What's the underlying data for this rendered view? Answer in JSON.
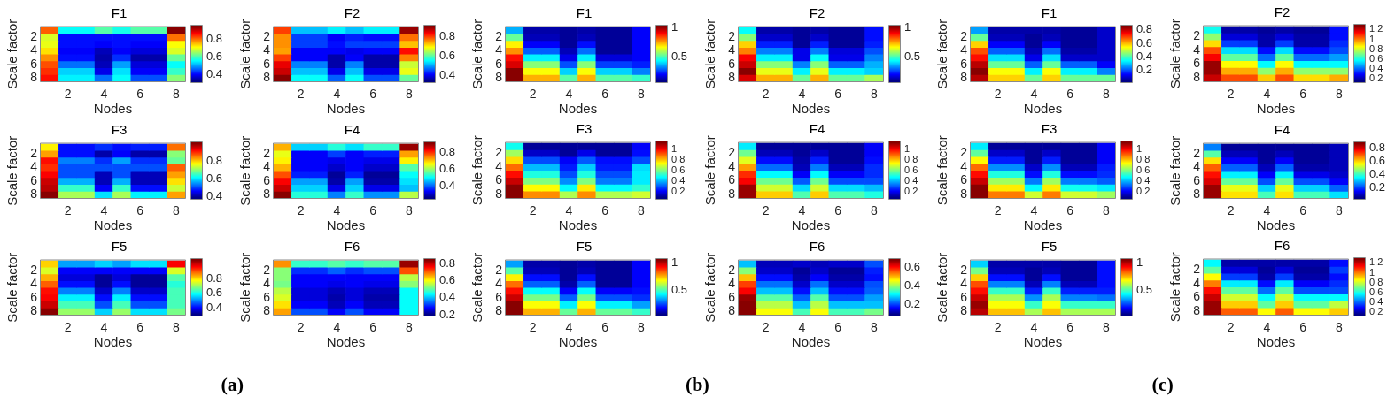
{
  "chart_data": [
    {
      "type": "heatmap",
      "title": "F1",
      "xlabel": "Nodes",
      "ylabel": "Scale factor",
      "categories": [
        null,
        "2",
        null,
        "4",
        null,
        "6",
        null,
        "8"
      ],
      "y_categories": [
        null,
        "2",
        null,
        "4",
        null,
        "6",
        null,
        "8"
      ],
      "clim": [
        0.32,
        0.94
      ],
      "cticks": [
        0.4,
        0.6,
        0.8
      ],
      "cells": [
        [
          0.8,
          0.55,
          0.55,
          0.6,
          0.56,
          0.6,
          0.6,
          0.94
        ],
        [
          0.68,
          0.41,
          0.41,
          0.41,
          0.4,
          0.41,
          0.41,
          0.79
        ],
        [
          0.69,
          0.4,
          0.4,
          0.39,
          0.4,
          0.39,
          0.39,
          0.7
        ],
        [
          0.72,
          0.39,
          0.39,
          0.36,
          0.39,
          0.37,
          0.37,
          0.68
        ],
        [
          0.77,
          0.41,
          0.41,
          0.34,
          0.42,
          0.34,
          0.34,
          0.61
        ],
        [
          0.81,
          0.47,
          0.47,
          0.36,
          0.49,
          0.37,
          0.37,
          0.55
        ],
        [
          0.83,
          0.52,
          0.52,
          0.38,
          0.53,
          0.39,
          0.39,
          0.58
        ],
        [
          0.85,
          0.54,
          0.54,
          0.46,
          0.55,
          0.44,
          0.44,
          0.63
        ]
      ]
    },
    {
      "type": "heatmap",
      "title": "F2",
      "xlabel": "Nodes",
      "ylabel": "Scale factor",
      "categories": [
        null,
        "2",
        null,
        "4",
        null,
        "6",
        null,
        "8"
      ],
      "y_categories": [
        null,
        "2",
        null,
        "4",
        null,
        "6",
        null,
        "8"
      ],
      "clim": [
        0.34,
        0.9
      ],
      "cticks": [
        0.4,
        0.6,
        0.8
      ],
      "cells": [
        [
          0.8,
          0.52,
          0.52,
          0.54,
          0.52,
          0.54,
          0.54,
          0.89
        ],
        [
          0.75,
          0.44,
          0.44,
          0.41,
          0.43,
          0.42,
          0.42,
          0.77
        ],
        [
          0.75,
          0.44,
          0.44,
          0.42,
          0.44,
          0.44,
          0.44,
          0.72
        ],
        [
          0.74,
          0.41,
          0.41,
          0.41,
          0.4,
          0.41,
          0.41,
          0.82
        ],
        [
          0.8,
          0.41,
          0.41,
          0.36,
          0.41,
          0.36,
          0.36,
          0.76
        ],
        [
          0.84,
          0.48,
          0.48,
          0.36,
          0.48,
          0.36,
          0.36,
          0.66
        ],
        [
          0.86,
          0.52,
          0.52,
          0.4,
          0.52,
          0.4,
          0.4,
          0.68
        ],
        [
          0.9,
          0.55,
          0.55,
          0.46,
          0.55,
          0.45,
          0.45,
          0.61
        ]
      ]
    },
    {
      "type": "heatmap",
      "title": "F3",
      "xlabel": "Nodes",
      "ylabel": "Scale factor",
      "categories": [
        null,
        "2",
        null,
        "4",
        null,
        "6",
        null,
        "8"
      ],
      "y_categories": [
        null,
        "2",
        null,
        "4",
        null,
        "6",
        null,
        "8"
      ],
      "clim": [
        0.38,
        1.0
      ],
      "cticks": [
        0.4,
        0.6,
        0.8
      ],
      "cells": [
        [
          0.77,
          0.46,
          0.46,
          0.49,
          0.46,
          0.48,
          0.48,
          0.85
        ],
        [
          0.83,
          0.46,
          0.46,
          0.4,
          0.45,
          0.4,
          0.4,
          0.7
        ],
        [
          0.91,
          0.53,
          0.53,
          0.49,
          0.55,
          0.49,
          0.49,
          0.67
        ],
        [
          0.89,
          0.5,
          0.5,
          0.5,
          0.5,
          0.5,
          0.5,
          0.86
        ],
        [
          0.92,
          0.5,
          0.5,
          0.42,
          0.5,
          0.42,
          0.42,
          0.83
        ],
        [
          0.95,
          0.57,
          0.57,
          0.42,
          0.57,
          0.42,
          0.42,
          0.78
        ],
        [
          0.97,
          0.64,
          0.64,
          0.45,
          0.64,
          0.47,
          0.47,
          0.73
        ],
        [
          1.0,
          0.71,
          0.71,
          0.6,
          0.71,
          0.61,
          0.61,
          0.83
        ]
      ]
    },
    {
      "type": "heatmap",
      "title": "F4",
      "xlabel": "Nodes",
      "ylabel": "Scale factor",
      "categories": [
        null,
        "2",
        null,
        "4",
        null,
        "6",
        null,
        "8"
      ],
      "y_categories": [
        null,
        "2",
        null,
        "4",
        null,
        "6",
        null,
        "8"
      ],
      "clim": [
        0.26,
        0.91
      ],
      "cticks": [
        0.4,
        0.6,
        0.8
      ],
      "cells": [
        [
          0.72,
          0.48,
          0.48,
          0.53,
          0.49,
          0.54,
          0.54,
          0.89
        ],
        [
          0.65,
          0.34,
          0.34,
          0.38,
          0.34,
          0.36,
          0.36,
          0.73
        ],
        [
          0.67,
          0.34,
          0.34,
          0.33,
          0.34,
          0.33,
          0.33,
          0.67
        ],
        [
          0.72,
          0.34,
          0.34,
          0.31,
          0.34,
          0.31,
          0.31,
          0.56
        ],
        [
          0.78,
          0.36,
          0.36,
          0.28,
          0.36,
          0.28,
          0.28,
          0.51
        ],
        [
          0.83,
          0.44,
          0.44,
          0.29,
          0.44,
          0.29,
          0.29,
          0.49
        ],
        [
          0.86,
          0.48,
          0.48,
          0.33,
          0.48,
          0.33,
          0.33,
          0.46
        ],
        [
          0.91,
          0.53,
          0.53,
          0.42,
          0.54,
          0.43,
          0.43,
          0.62
        ]
      ]
    },
    {
      "type": "heatmap",
      "title": "F5",
      "xlabel": "Nodes",
      "ylabel": "Scale factor",
      "categories": [
        null,
        "2",
        null,
        "4",
        null,
        "6",
        null,
        "8"
      ],
      "y_categories": [
        null,
        "2",
        null,
        "4",
        null,
        "6",
        null,
        "8"
      ],
      "clim": [
        0.31,
        1.05
      ],
      "cticks": [
        0.4,
        0.6,
        0.8
      ],
      "cells": [
        [
          0.81,
          0.52,
          0.52,
          0.56,
          0.52,
          0.57,
          0.57,
          0.96
        ],
        [
          0.75,
          0.4,
          0.4,
          0.4,
          0.4,
          0.4,
          0.4,
          0.74
        ],
        [
          0.83,
          0.38,
          0.38,
          0.33,
          0.38,
          0.33,
          0.33,
          0.65
        ],
        [
          0.89,
          0.41,
          0.41,
          0.33,
          0.41,
          0.33,
          0.33,
          0.61
        ],
        [
          0.95,
          0.5,
          0.5,
          0.36,
          0.5,
          0.36,
          0.36,
          0.64
        ],
        [
          0.96,
          0.58,
          0.58,
          0.41,
          0.58,
          0.41,
          0.41,
          0.64
        ],
        [
          1.0,
          0.64,
          0.64,
          0.46,
          0.64,
          0.46,
          0.46,
          0.64
        ],
        [
          1.05,
          0.7,
          0.7,
          0.56,
          0.7,
          0.57,
          0.57,
          0.67
        ]
      ]
    },
    {
      "type": "heatmap",
      "title": "F6",
      "xlabel": "Nodes",
      "ylabel": "Scale factor",
      "categories": [
        null,
        "2",
        null,
        "4",
        null,
        "6",
        null,
        "8"
      ],
      "y_categories": [
        null,
        "2",
        null,
        "4",
        null,
        "6",
        null,
        "8"
      ],
      "clim": [
        0.2,
        0.84
      ],
      "cticks": [
        0.2,
        0.4,
        0.6,
        0.8
      ],
      "annotations": [
        "(a)"
      ],
      "cells": [
        [
          0.67,
          0.47,
          0.47,
          0.49,
          0.47,
          0.49,
          0.49,
          0.82
        ],
        [
          0.52,
          0.31,
          0.31,
          0.34,
          0.31,
          0.33,
          0.33,
          0.71
        ],
        [
          0.52,
          0.28,
          0.28,
          0.28,
          0.28,
          0.28,
          0.28,
          0.56
        ],
        [
          0.51,
          0.28,
          0.28,
          0.27,
          0.28,
          0.27,
          0.27,
          0.52
        ],
        [
          0.56,
          0.26,
          0.26,
          0.24,
          0.26,
          0.24,
          0.24,
          0.44
        ],
        [
          0.58,
          0.26,
          0.26,
          0.23,
          0.26,
          0.23,
          0.23,
          0.44
        ],
        [
          0.62,
          0.28,
          0.28,
          0.24,
          0.28,
          0.24,
          0.24,
          0.44
        ],
        [
          0.66,
          0.33,
          0.33,
          0.28,
          0.33,
          0.28,
          0.28,
          0.44
        ]
      ]
    },
    {
      "type": "heatmap",
      "title": "F1",
      "xlabel": "Nodes",
      "ylabel": "Scale factor",
      "categories": [
        null,
        "2",
        null,
        "4",
        null,
        "6",
        null,
        "8"
      ],
      "y_categories": [
        null,
        "2",
        null,
        "4",
        null,
        "6",
        null,
        "8"
      ],
      "clim": [
        0.07,
        1.02
      ],
      "cticks": [
        0.5,
        1
      ],
      "cells": [
        [
          0.36,
          0.11,
          0.11,
          0.1,
          0.11,
          0.1,
          0.1,
          0.19
        ],
        [
          0.52,
          0.13,
          0.13,
          0.09,
          0.13,
          0.09,
          0.09,
          0.19
        ],
        [
          0.67,
          0.19,
          0.19,
          0.09,
          0.2,
          0.09,
          0.09,
          0.18
        ],
        [
          0.77,
          0.28,
          0.28,
          0.12,
          0.29,
          0.1,
          0.1,
          0.18
        ],
        [
          0.89,
          0.41,
          0.41,
          0.17,
          0.42,
          0.15,
          0.15,
          0.19
        ],
        [
          0.94,
          0.55,
          0.55,
          0.26,
          0.55,
          0.24,
          0.24,
          0.21
        ],
        [
          1.01,
          0.66,
          0.66,
          0.39,
          0.66,
          0.39,
          0.39,
          0.3
        ],
        [
          1.02,
          0.74,
          0.74,
          0.51,
          0.74,
          0.51,
          0.51,
          0.47
        ]
      ]
    },
    {
      "type": "heatmap",
      "title": "F2",
      "xlabel": "Nodes",
      "ylabel": "Scale factor",
      "categories": [
        null,
        "2",
        null,
        "4",
        null,
        "6",
        null,
        "8"
      ],
      "y_categories": [
        null,
        "2",
        null,
        "4",
        null,
        "6",
        null,
        "8"
      ],
      "clim": [
        0.07,
        1.02
      ],
      "cticks": [
        0.5,
        1
      ],
      "cells": [
        [
          0.43,
          0.11,
          0.11,
          0.1,
          0.11,
          0.1,
          0.1,
          0.2
        ],
        [
          0.55,
          0.14,
          0.14,
          0.09,
          0.14,
          0.09,
          0.09,
          0.2
        ],
        [
          0.7,
          0.21,
          0.21,
          0.1,
          0.22,
          0.1,
          0.1,
          0.21
        ],
        [
          0.79,
          0.31,
          0.31,
          0.17,
          0.31,
          0.15,
          0.15,
          0.26
        ],
        [
          0.9,
          0.42,
          0.42,
          0.17,
          0.43,
          0.17,
          0.17,
          0.3
        ],
        [
          0.95,
          0.55,
          0.55,
          0.3,
          0.55,
          0.28,
          0.28,
          0.36
        ],
        [
          1.02,
          0.64,
          0.64,
          0.41,
          0.64,
          0.41,
          0.41,
          0.38
        ],
        [
          0.93,
          0.74,
          0.74,
          0.52,
          0.74,
          0.52,
          0.52,
          0.59
        ]
      ]
    },
    {
      "type": "heatmap",
      "title": "F3",
      "xlabel": "Nodes",
      "ylabel": "Scale factor",
      "categories": [
        null,
        "2",
        null,
        "4",
        null,
        "6",
        null,
        "8"
      ],
      "y_categories": [
        null,
        "2",
        null,
        "4",
        null,
        "6",
        null,
        "8"
      ],
      "clim": [
        0.08,
        1.13
      ],
      "cticks": [
        0.2,
        0.4,
        0.6,
        0.8,
        1
      ],
      "cells": [
        [
          0.48,
          0.11,
          0.11,
          0.1,
          0.11,
          0.1,
          0.1,
          0.21
        ],
        [
          0.63,
          0.16,
          0.16,
          0.11,
          0.19,
          0.11,
          0.11,
          0.22
        ],
        [
          0.77,
          0.29,
          0.29,
          0.21,
          0.3,
          0.22,
          0.22,
          0.29
        ],
        [
          0.88,
          0.4,
          0.4,
          0.23,
          0.42,
          0.23,
          0.23,
          0.43
        ],
        [
          0.98,
          0.5,
          0.5,
          0.29,
          0.5,
          0.29,
          0.29,
          0.46
        ],
        [
          1.05,
          0.61,
          0.61,
          0.36,
          0.61,
          0.34,
          0.34,
          0.45
        ],
        [
          1.13,
          0.74,
          0.74,
          0.47,
          0.75,
          0.47,
          0.47,
          0.52
        ],
        [
          1.13,
          0.85,
          0.85,
          0.66,
          0.86,
          0.66,
          0.66,
          0.68
        ]
      ]
    },
    {
      "type": "heatmap",
      "title": "F4",
      "xlabel": "Nodes",
      "ylabel": "Scale factor",
      "categories": [
        null,
        "2",
        null,
        "4",
        null,
        "6",
        null,
        "8"
      ],
      "y_categories": [
        null,
        "2",
        null,
        "4",
        null,
        "6",
        null,
        "8"
      ],
      "clim": [
        0.08,
        1.13
      ],
      "cticks": [
        0.2,
        0.4,
        0.6,
        0.8,
        1
      ],
      "cells": [
        [
          0.45,
          0.11,
          0.11,
          0.1,
          0.11,
          0.1,
          0.1,
          0.21
        ],
        [
          0.58,
          0.14,
          0.14,
          0.1,
          0.15,
          0.1,
          0.1,
          0.21
        ],
        [
          0.71,
          0.22,
          0.22,
          0.12,
          0.23,
          0.11,
          0.11,
          0.22
        ],
        [
          0.84,
          0.32,
          0.32,
          0.14,
          0.33,
          0.13,
          0.13,
          0.25
        ],
        [
          0.96,
          0.47,
          0.47,
          0.21,
          0.47,
          0.21,
          0.21,
          0.26
        ],
        [
          1.0,
          0.58,
          0.58,
          0.31,
          0.58,
          0.29,
          0.29,
          0.29
        ],
        [
          1.11,
          0.69,
          0.69,
          0.44,
          0.69,
          0.44,
          0.44,
          0.4
        ],
        [
          1.11,
          0.79,
          0.79,
          0.56,
          0.79,
          0.56,
          0.56,
          0.5
        ]
      ]
    },
    {
      "type": "heatmap",
      "title": "F5",
      "xlabel": "Nodes",
      "ylabel": "Scale factor",
      "categories": [
        null,
        "2",
        null,
        "4",
        null,
        "6",
        null,
        "8"
      ],
      "y_categories": [
        null,
        "2",
        null,
        "4",
        null,
        "6",
        null,
        "8"
      ],
      "clim": [
        0.07,
        1.04
      ],
      "cticks": [
        0.5,
        1
      ],
      "cells": [
        [
          0.34,
          0.11,
          0.11,
          0.1,
          0.11,
          0.1,
          0.1,
          0.19
        ],
        [
          0.52,
          0.13,
          0.13,
          0.09,
          0.12,
          0.09,
          0.09,
          0.19
        ],
        [
          0.69,
          0.2,
          0.2,
          0.09,
          0.2,
          0.09,
          0.09,
          0.19
        ],
        [
          0.81,
          0.28,
          0.28,
          0.11,
          0.28,
          0.1,
          0.1,
          0.19
        ],
        [
          0.9,
          0.43,
          0.43,
          0.19,
          0.43,
          0.19,
          0.19,
          0.2
        ],
        [
          0.97,
          0.55,
          0.55,
          0.28,
          0.55,
          0.26,
          0.26,
          0.24
        ],
        [
          1.04,
          0.67,
          0.67,
          0.42,
          0.67,
          0.42,
          0.42,
          0.34
        ],
        [
          1.03,
          0.75,
          0.75,
          0.53,
          0.75,
          0.53,
          0.53,
          0.49
        ]
      ]
    },
    {
      "type": "heatmap",
      "title": "F6",
      "xlabel": "Nodes",
      "ylabel": "Scale factor",
      "categories": [
        null,
        "2",
        null,
        "4",
        null,
        "6",
        null,
        "8"
      ],
      "y_categories": [
        null,
        "2",
        null,
        "4",
        null,
        "6",
        null,
        "8"
      ],
      "clim": [
        0.09,
        0.68
      ],
      "cticks": [
        0.2,
        0.4,
        0.6
      ],
      "annotations": [
        "(b)"
      ],
      "cells": [
        [
          0.28,
          0.12,
          0.12,
          0.13,
          0.12,
          0.13,
          0.13,
          0.21
        ],
        [
          0.39,
          0.13,
          0.13,
          0.1,
          0.13,
          0.1,
          0.1,
          0.18
        ],
        [
          0.49,
          0.17,
          0.17,
          0.11,
          0.16,
          0.11,
          0.11,
          0.17
        ],
        [
          0.57,
          0.23,
          0.23,
          0.13,
          0.23,
          0.13,
          0.13,
          0.21
        ],
        [
          0.61,
          0.28,
          0.28,
          0.17,
          0.28,
          0.17,
          0.17,
          0.22
        ],
        [
          0.67,
          0.36,
          0.36,
          0.22,
          0.36,
          0.21,
          0.21,
          0.26
        ],
        [
          0.68,
          0.42,
          0.42,
          0.28,
          0.42,
          0.28,
          0.28,
          0.28
        ],
        [
          0.68,
          0.46,
          0.46,
          0.35,
          0.46,
          0.35,
          0.35,
          0.38
        ]
      ]
    },
    {
      "type": "heatmap",
      "title": "F1",
      "xlabel": "Nodes",
      "ylabel": "Scale factor",
      "categories": [
        null,
        "2",
        null,
        "4",
        null,
        "6",
        null,
        "8"
      ],
      "y_categories": [
        null,
        "2",
        null,
        "4",
        null,
        "6",
        null,
        "8"
      ],
      "clim": [
        0.04,
        0.84
      ],
      "cticks": [
        0.2,
        0.4,
        0.6,
        0.8
      ],
      "cells": [
        [
          0.26,
          0.07,
          0.07,
          0.07,
          0.07,
          0.06,
          0.06,
          0.1
        ],
        [
          0.42,
          0.09,
          0.09,
          0.06,
          0.09,
          0.06,
          0.06,
          0.1
        ],
        [
          0.58,
          0.14,
          0.14,
          0.06,
          0.14,
          0.06,
          0.06,
          0.1
        ],
        [
          0.68,
          0.22,
          0.22,
          0.09,
          0.23,
          0.07,
          0.07,
          0.1
        ],
        [
          0.73,
          0.32,
          0.32,
          0.13,
          0.32,
          0.1,
          0.1,
          0.1
        ],
        [
          0.79,
          0.42,
          0.42,
          0.22,
          0.42,
          0.22,
          0.22,
          0.14
        ],
        [
          0.84,
          0.54,
          0.54,
          0.33,
          0.54,
          0.33,
          0.33,
          0.24
        ],
        [
          0.79,
          0.58,
          0.58,
          0.42,
          0.58,
          0.42,
          0.42,
          0.42
        ]
      ]
    },
    {
      "type": "heatmap",
      "title": "F2",
      "xlabel": "Nodes",
      "ylabel": "Scale factor",
      "categories": [
        null,
        "2",
        null,
        "4",
        null,
        "6",
        null,
        "8"
      ],
      "y_categories": [
        null,
        "2",
        null,
        "4",
        null,
        "6",
        null,
        "8"
      ],
      "clim": [
        0.15,
        1.27
      ],
      "cticks": [
        0.2,
        0.4,
        0.6,
        0.8,
        1,
        1.2
      ],
      "cells": [
        [
          0.58,
          0.19,
          0.19,
          0.18,
          0.19,
          0.18,
          0.18,
          0.3
        ],
        [
          0.72,
          0.24,
          0.24,
          0.19,
          0.24,
          0.19,
          0.19,
          0.3
        ],
        [
          0.89,
          0.35,
          0.35,
          0.2,
          0.35,
          0.2,
          0.2,
          0.33
        ],
        [
          1.05,
          0.53,
          0.53,
          0.3,
          0.53,
          0.3,
          0.3,
          0.38
        ],
        [
          1.13,
          0.67,
          0.67,
          0.4,
          0.67,
          0.4,
          0.4,
          0.46
        ],
        [
          1.24,
          0.85,
          0.85,
          0.56,
          0.85,
          0.56,
          0.56,
          0.56
        ],
        [
          1.24,
          0.94,
          0.94,
          0.72,
          0.94,
          0.72,
          0.72,
          0.72
        ],
        [
          1.19,
          1.05,
          1.05,
          0.9,
          1.05,
          0.89,
          0.89,
          0.94
        ]
      ]
    },
    {
      "type": "heatmap",
      "title": "F3",
      "xlabel": "Nodes",
      "ylabel": "Scale factor",
      "categories": [
        null,
        "2",
        null,
        "4",
        null,
        "6",
        null,
        "8"
      ],
      "y_categories": [
        null,
        "2",
        null,
        "4",
        null,
        "6",
        null,
        "8"
      ],
      "clim": [
        0.08,
        1.13
      ],
      "cticks": [
        0.2,
        0.4,
        0.6,
        0.8,
        1
      ],
      "cells": [
        [
          0.45,
          0.11,
          0.11,
          0.1,
          0.11,
          0.1,
          0.1,
          0.2
        ],
        [
          0.57,
          0.15,
          0.15,
          0.1,
          0.15,
          0.1,
          0.1,
          0.2
        ],
        [
          0.73,
          0.23,
          0.23,
          0.11,
          0.24,
          0.11,
          0.11,
          0.21
        ],
        [
          0.89,
          0.36,
          0.36,
          0.15,
          0.36,
          0.14,
          0.14,
          0.23
        ],
        [
          0.99,
          0.5,
          0.5,
          0.22,
          0.51,
          0.22,
          0.22,
          0.25
        ],
        [
          1.05,
          0.63,
          0.63,
          0.33,
          0.63,
          0.33,
          0.33,
          0.31
        ],
        [
          1.13,
          0.75,
          0.75,
          0.47,
          0.75,
          0.48,
          0.48,
          0.45
        ],
        [
          1.13,
          0.87,
          0.87,
          0.69,
          0.87,
          0.69,
          0.69,
          0.63
        ]
      ]
    },
    {
      "type": "heatmap",
      "title": "F4",
      "xlabel": "Nodes",
      "ylabel": "Scale factor",
      "categories": [
        null,
        "2",
        null,
        "4",
        null,
        "6",
        null,
        "8"
      ],
      "y_categories": [
        null,
        "2",
        null,
        "4",
        null,
        "6",
        null,
        "8"
      ],
      "clim": [
        0.04,
        0.86
      ],
      "cticks": [
        0.2,
        0.4,
        0.6,
        0.8
      ],
      "cells": [
        [
          0.25,
          0.06,
          0.06,
          0.06,
          0.06,
          0.06,
          0.06,
          0.09
        ],
        [
          0.42,
          0.08,
          0.08,
          0.06,
          0.08,
          0.06,
          0.06,
          0.09
        ],
        [
          0.58,
          0.14,
          0.14,
          0.06,
          0.14,
          0.06,
          0.06,
          0.09
        ],
        [
          0.68,
          0.22,
          0.22,
          0.09,
          0.22,
          0.07,
          0.07,
          0.09
        ],
        [
          0.75,
          0.34,
          0.34,
          0.14,
          0.34,
          0.12,
          0.12,
          0.1
        ],
        [
          0.79,
          0.43,
          0.43,
          0.2,
          0.43,
          0.2,
          0.2,
          0.14
        ],
        [
          0.84,
          0.53,
          0.53,
          0.31,
          0.53,
          0.31,
          0.31,
          0.22
        ],
        [
          0.84,
          0.58,
          0.58,
          0.41,
          0.58,
          0.41,
          0.41,
          0.33
        ]
      ]
    },
    {
      "type": "heatmap",
      "title": "F5",
      "xlabel": "Nodes",
      "ylabel": "Scale factor",
      "categories": [
        null,
        "2",
        null,
        "4",
        null,
        "6",
        null,
        "8"
      ],
      "y_categories": [
        null,
        "2",
        null,
        "4",
        null,
        "6",
        null,
        "8"
      ],
      "clim": [
        0.07,
        1.04
      ],
      "cticks": [
        0.5,
        1
      ],
      "cells": [
        [
          0.39,
          0.11,
          0.11,
          0.11,
          0.11,
          0.1,
          0.1,
          0.2
        ],
        [
          0.54,
          0.13,
          0.13,
          0.09,
          0.13,
          0.09,
          0.09,
          0.2
        ],
        [
          0.72,
          0.2,
          0.2,
          0.1,
          0.2,
          0.1,
          0.1,
          0.2
        ],
        [
          0.84,
          0.31,
          0.31,
          0.13,
          0.31,
          0.12,
          0.12,
          0.2
        ],
        [
          0.91,
          0.48,
          0.48,
          0.22,
          0.48,
          0.22,
          0.22,
          0.22
        ],
        [
          0.97,
          0.6,
          0.6,
          0.33,
          0.6,
          0.31,
          0.31,
          0.29
        ],
        [
          1.02,
          0.68,
          0.68,
          0.48,
          0.68,
          0.48,
          0.48,
          0.48
        ],
        [
          0.98,
          0.73,
          0.73,
          0.6,
          0.73,
          0.6,
          0.6,
          0.6
        ]
      ]
    },
    {
      "type": "heatmap",
      "title": "F6",
      "xlabel": "Nodes",
      "ylabel": "Scale factor",
      "categories": [
        null,
        "2",
        null,
        "4",
        null,
        "6",
        null,
        "8"
      ],
      "y_categories": [
        null,
        "2",
        null,
        "4",
        null,
        "6",
        null,
        "8"
      ],
      "clim": [
        0.15,
        1.27
      ],
      "cticks": [
        0.2,
        0.4,
        0.6,
        0.8,
        1,
        1.2
      ],
      "annotations": [
        "(c)"
      ],
      "cells": [
        [
          0.57,
          0.2,
          0.2,
          0.19,
          0.2,
          0.19,
          0.19,
          0.3
        ],
        [
          0.68,
          0.24,
          0.24,
          0.18,
          0.24,
          0.18,
          0.18,
          0.35
        ],
        [
          0.86,
          0.35,
          0.35,
          0.19,
          0.35,
          0.19,
          0.19,
          0.3
        ],
        [
          1.0,
          0.55,
          0.55,
          0.3,
          0.55,
          0.29,
          0.29,
          0.33
        ],
        [
          1.11,
          0.67,
          0.67,
          0.4,
          0.67,
          0.38,
          0.38,
          0.38
        ],
        [
          1.19,
          0.79,
          0.79,
          0.57,
          0.79,
          0.57,
          0.57,
          0.57
        ],
        [
          1.25,
          0.91,
          0.91,
          0.67,
          0.91,
          0.67,
          0.67,
          0.78
        ],
        [
          1.25,
          1.03,
          1.03,
          0.85,
          1.03,
          0.85,
          0.85,
          0.91
        ]
      ]
    }
  ]
}
